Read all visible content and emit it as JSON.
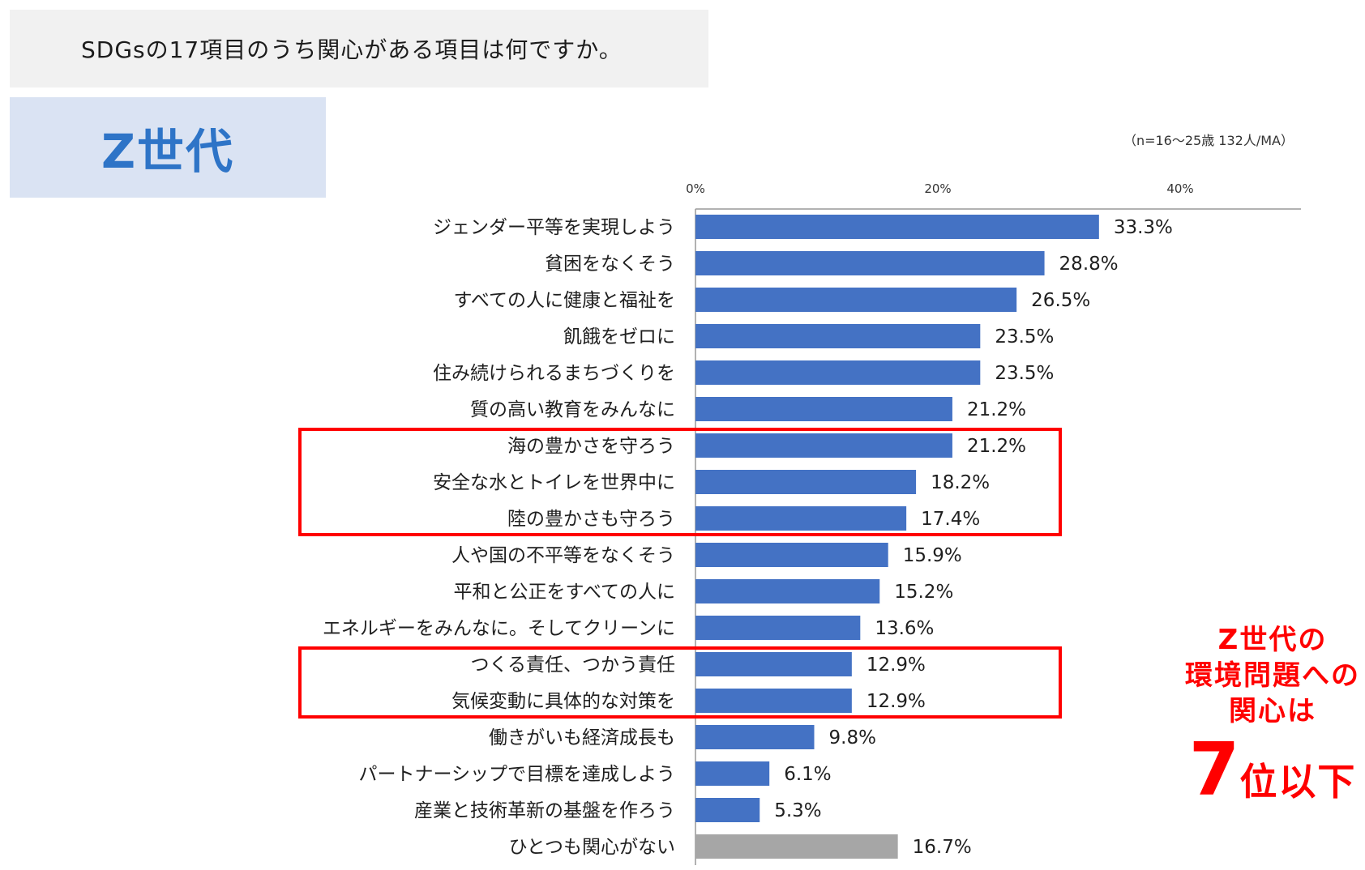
{
  "header": {
    "question": "SDGsの17項目のうち関心がある項目は何ですか。",
    "segment_label": "Z世代",
    "sample_note": "（n=16～25歳 132人/MA）"
  },
  "callout": {
    "line1": "Z世代の",
    "line2": "環境問題への",
    "line3": "関心は",
    "rank_number": "7",
    "rank_suffix": "位以下"
  },
  "colors": {
    "bar": "#4472c4",
    "bar_none": "#a6a6a6",
    "highlight": "#ff0000",
    "segment_bg": "#dae3f3",
    "segment_text": "#2e74c7"
  },
  "chart_data": {
    "type": "bar",
    "orientation": "horizontal",
    "xlim": [
      0,
      50
    ],
    "ticks": [
      {
        "value": 0,
        "label": "0%"
      },
      {
        "value": 20,
        "label": "20%"
      },
      {
        "value": 40,
        "label": "40%"
      }
    ],
    "categories": [
      "ジェンダー平等を実現しよう",
      "貧困をなくそう",
      "すべての人に健康と福祉を",
      "飢餓をゼロに",
      "住み続けられるまちづくりを",
      "質の高い教育をみんなに",
      "海の豊かさを守ろう",
      "安全な水とトイレを世界中に",
      "陸の豊かさも守ろう",
      "人や国の不平等をなくそう",
      "平和と公正をすべての人に",
      "エネルギーをみんなに。そしてクリーンに",
      "つくる責任、つかう責任",
      "気候変動に具体的な対策を",
      "働きがいも経済成長も",
      "パートナーシップで目標を達成しよう",
      "産業と技術革新の基盤を作ろう",
      "ひとつも関心がない"
    ],
    "values": [
      33.3,
      28.8,
      26.5,
      23.5,
      23.5,
      21.2,
      21.2,
      18.2,
      17.4,
      15.9,
      15.2,
      13.6,
      12.9,
      12.9,
      9.8,
      6.1,
      5.3,
      16.7
    ],
    "labels": [
      "33.3%",
      "28.8%",
      "26.5%",
      "23.5%",
      "23.5%",
      "21.2%",
      "21.2%",
      "18.2%",
      "17.4%",
      "15.9%",
      "15.2%",
      "13.6%",
      "12.9%",
      "12.9%",
      "9.8%",
      "6.1%",
      "5.3%",
      "16.7%"
    ],
    "gray_categories": [
      "ひとつも関心がない"
    ],
    "highlight_groups": [
      [
        "海の豊かさを守ろう",
        "安全な水とトイレを世界中に",
        "陸の豊かさも守ろう"
      ],
      [
        "つくる責任、つかう責任",
        "気候変動に具体的な対策を"
      ]
    ]
  }
}
